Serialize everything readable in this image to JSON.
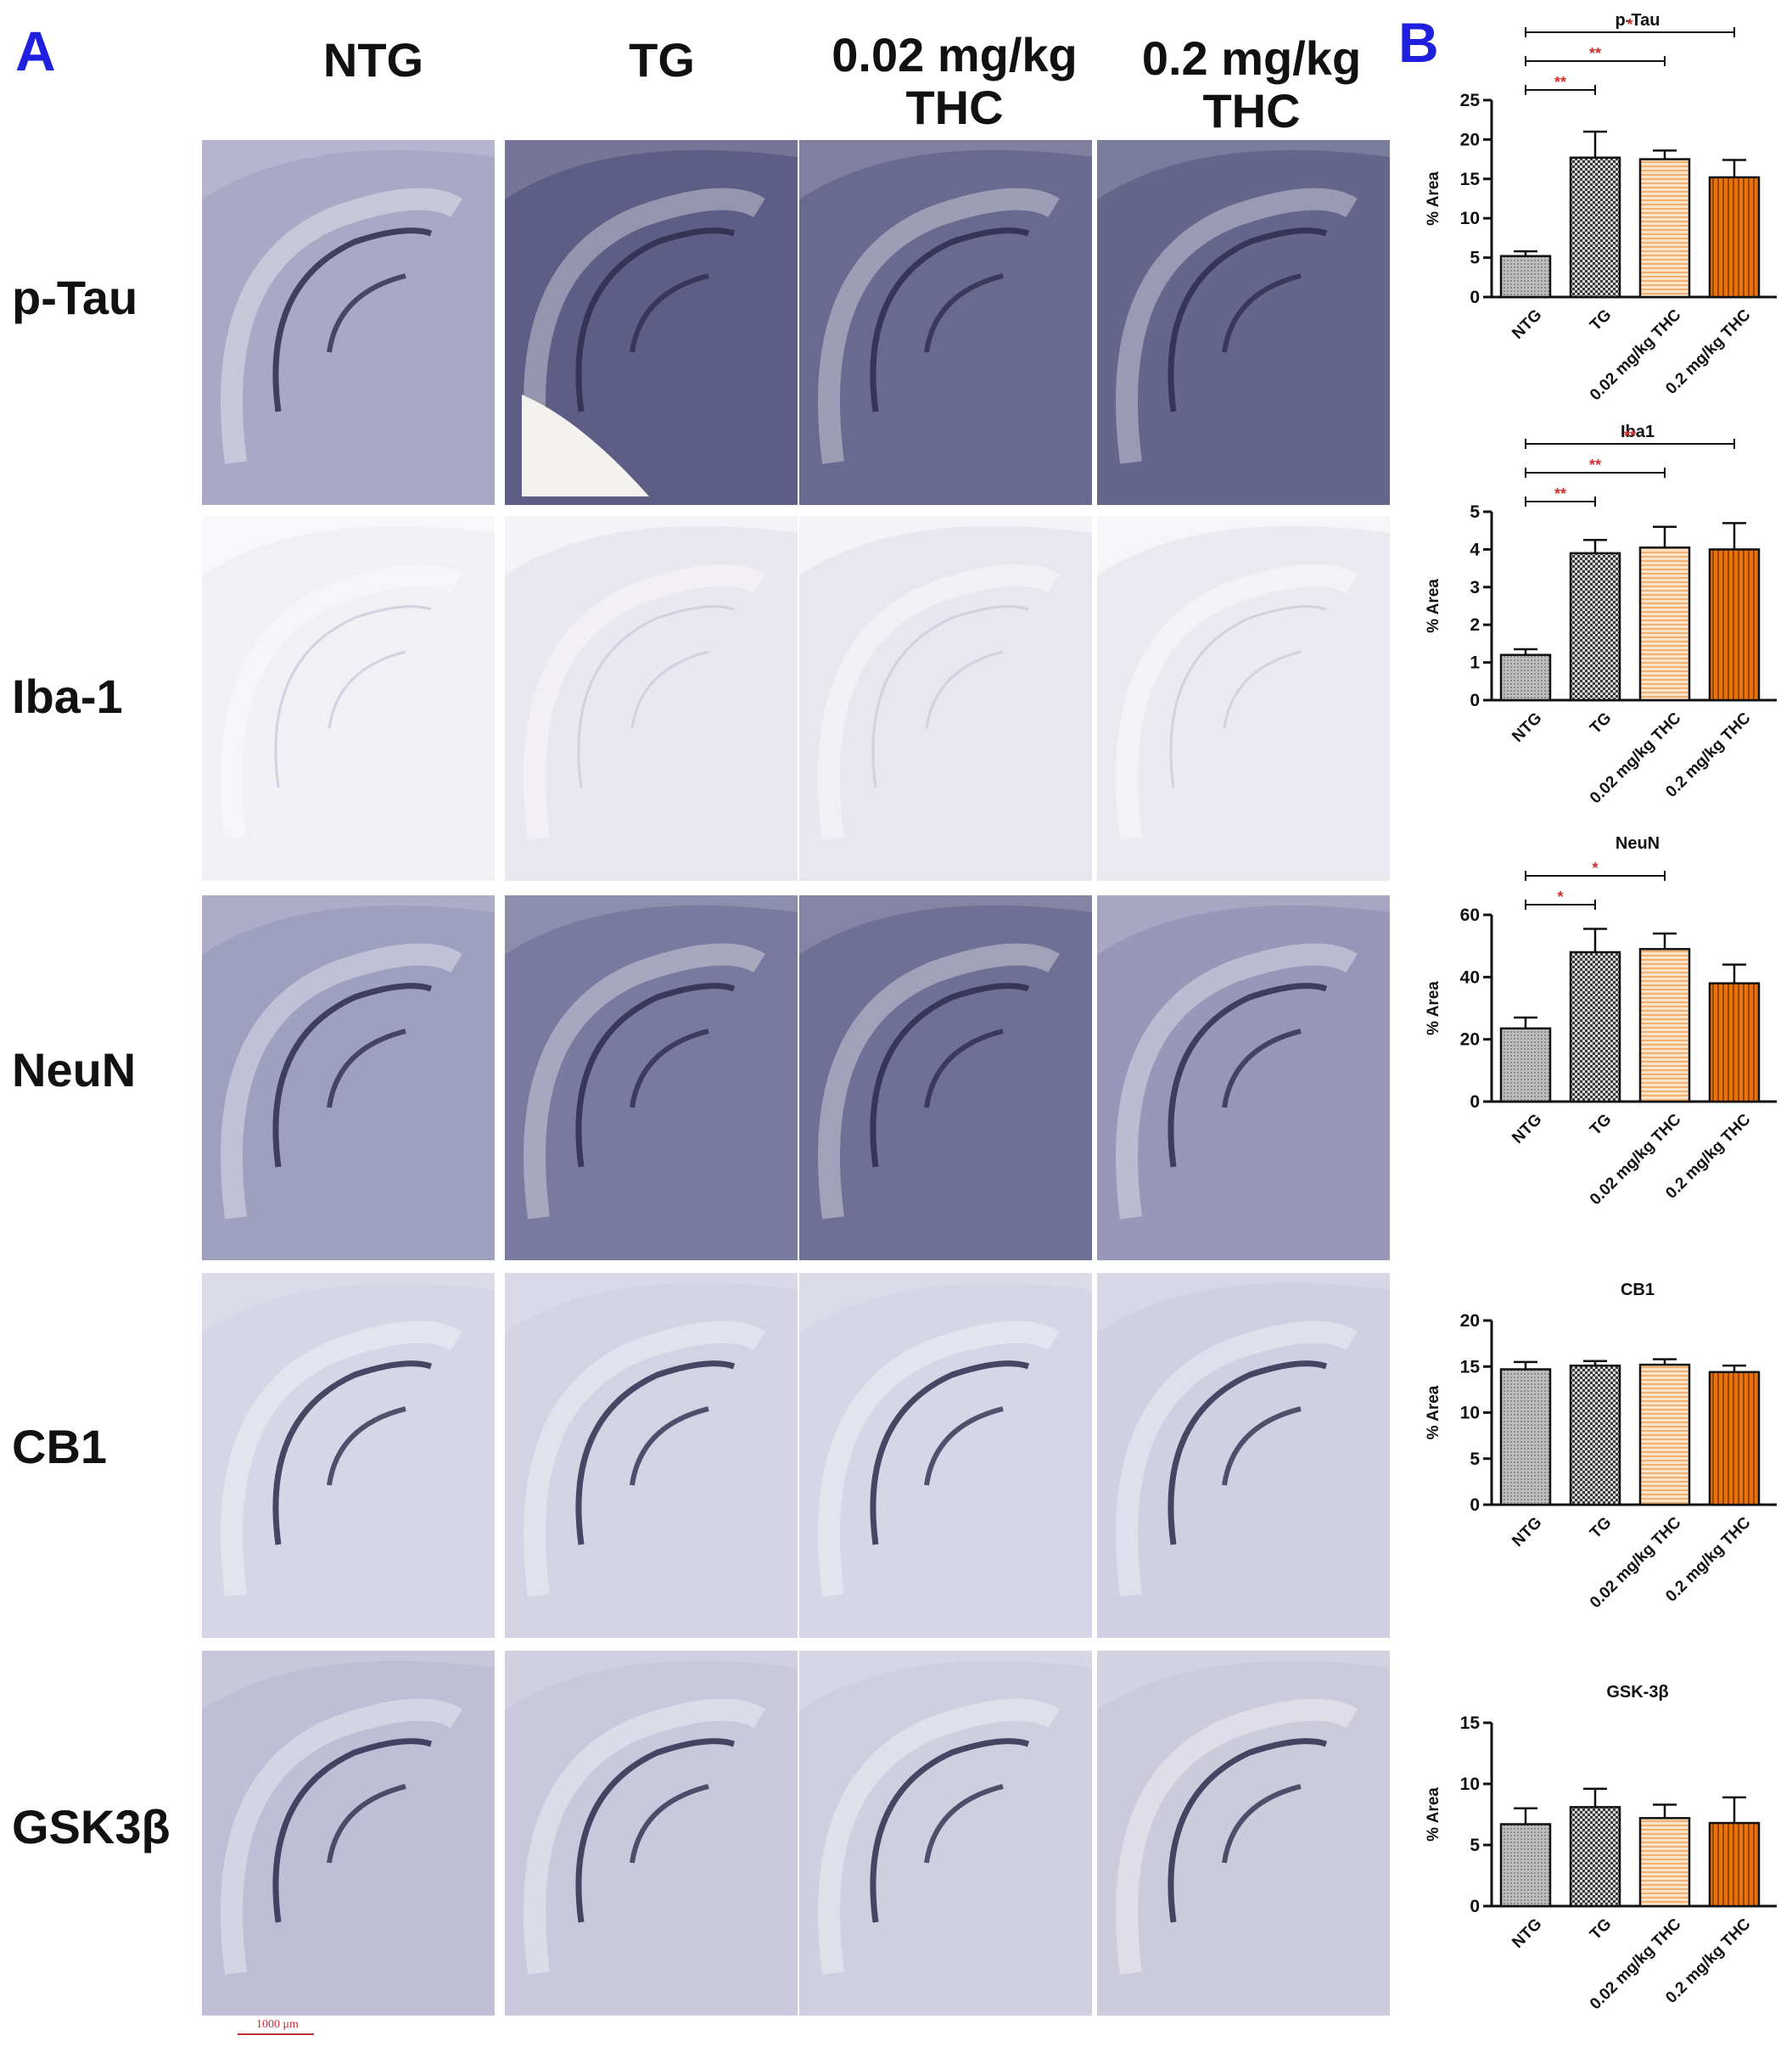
{
  "figure": {
    "panel_a_letter": "A",
    "panel_b_letter": "B",
    "columns": [
      "NTG",
      "TG",
      "0.02 mg/kg\nTHC",
      "0.2 mg/kg\nTHC"
    ],
    "rows": [
      "p-Tau",
      "Iba-1",
      "NeuN",
      "CB1",
      "GSK3β"
    ],
    "scale_bar_label": "1000 μm",
    "stain_colors": {
      "p-Tau": [
        "#a9a9c7",
        "#5e5d86",
        "#6a6990",
        "#66658c"
      ],
      "Iba-1": [
        "#f1f0f5",
        "#e9e7ef",
        "#e8e6ee",
        "#eceaf1"
      ],
      "NeuN": [
        "#9f9fc0",
        "#7a799f",
        "#706f96",
        "#9897b9"
      ],
      "CB1": [
        "#d6d6e6",
        "#d3d3e4",
        "#d6d6e6",
        "#d0d0e2"
      ],
      "GSK3β": [
        "#bfbed6",
        "#c9c8dc",
        "#cfcfe0",
        "#cccbdc"
      ]
    }
  },
  "chart_data": [
    {
      "type": "bar",
      "title": "p-Tau",
      "ylabel": "% Area",
      "categories": [
        "NTG",
        "TG",
        "0.02 mg/kg THC",
        "0.2 mg/kg THC"
      ],
      "values": [
        5.2,
        17.7,
        17.5,
        15.2
      ],
      "errors": [
        0.6,
        3.3,
        1.1,
        2.2
      ],
      "ylim": [
        0,
        25
      ],
      "yticks": [
        0,
        5,
        10,
        15,
        20,
        25
      ],
      "significance": [
        {
          "from": 0,
          "to": 1,
          "label": "**"
        },
        {
          "from": 0,
          "to": 2,
          "label": "**"
        },
        {
          "from": 0,
          "to": 3,
          "label": "*"
        }
      ]
    },
    {
      "type": "bar",
      "title": "Iba1",
      "ylabel": "% Area",
      "categories": [
        "NTG",
        "TG",
        "0.02 mg/kg THC",
        "0.2 mg/kg THC"
      ],
      "values": [
        1.2,
        3.9,
        4.05,
        4.0
      ],
      "errors": [
        0.15,
        0.35,
        0.55,
        0.7
      ],
      "ylim": [
        0,
        5
      ],
      "yticks": [
        0,
        1,
        2,
        3,
        4,
        5
      ],
      "significance": [
        {
          "from": 0,
          "to": 1,
          "label": "**"
        },
        {
          "from": 0,
          "to": 2,
          "label": "**"
        },
        {
          "from": 0,
          "to": 3,
          "label": "**"
        }
      ]
    },
    {
      "type": "bar",
      "title": "NeuN",
      "ylabel": "% Area",
      "categories": [
        "NTG",
        "TG",
        "0.02 mg/kg THC",
        "0.2 mg/kg THC"
      ],
      "values": [
        23.5,
        48.0,
        49.0,
        38.0
      ],
      "errors": [
        3.5,
        7.5,
        5.0,
        6.0
      ],
      "ylim": [
        0,
        60
      ],
      "yticks": [
        0,
        20,
        40,
        60
      ],
      "significance": [
        {
          "from": 0,
          "to": 1,
          "label": "*"
        },
        {
          "from": 0,
          "to": 2,
          "label": "*"
        }
      ]
    },
    {
      "type": "bar",
      "title": "CB1",
      "ylabel": "% Area",
      "categories": [
        "NTG",
        "TG",
        "0.02 mg/kg THC",
        "0.2 mg/kg THC"
      ],
      "values": [
        14.7,
        15.1,
        15.2,
        14.4
      ],
      "errors": [
        0.8,
        0.5,
        0.6,
        0.7
      ],
      "ylim": [
        0,
        20
      ],
      "yticks": [
        0,
        5,
        10,
        15,
        20
      ],
      "significance": []
    },
    {
      "type": "bar",
      "title": "GSK-3β",
      "ylabel": "% Area",
      "categories": [
        "NTG",
        "TG",
        "0.02 mg/kg THC",
        "0.2 mg/kg THC"
      ],
      "values": [
        6.7,
        8.1,
        7.2,
        6.8
      ],
      "errors": [
        1.3,
        1.5,
        1.1,
        2.1
      ],
      "ylim": [
        0,
        15
      ],
      "yticks": [
        0,
        5,
        10,
        15
      ],
      "significance": []
    }
  ],
  "colors": {
    "bar_ntg": "#bdbdbd",
    "bar_tg": "#3a3a3a",
    "bar_thc_low": "#f0b074",
    "bar_thc_high": "#e8730a",
    "significance_star": "#d03030"
  }
}
